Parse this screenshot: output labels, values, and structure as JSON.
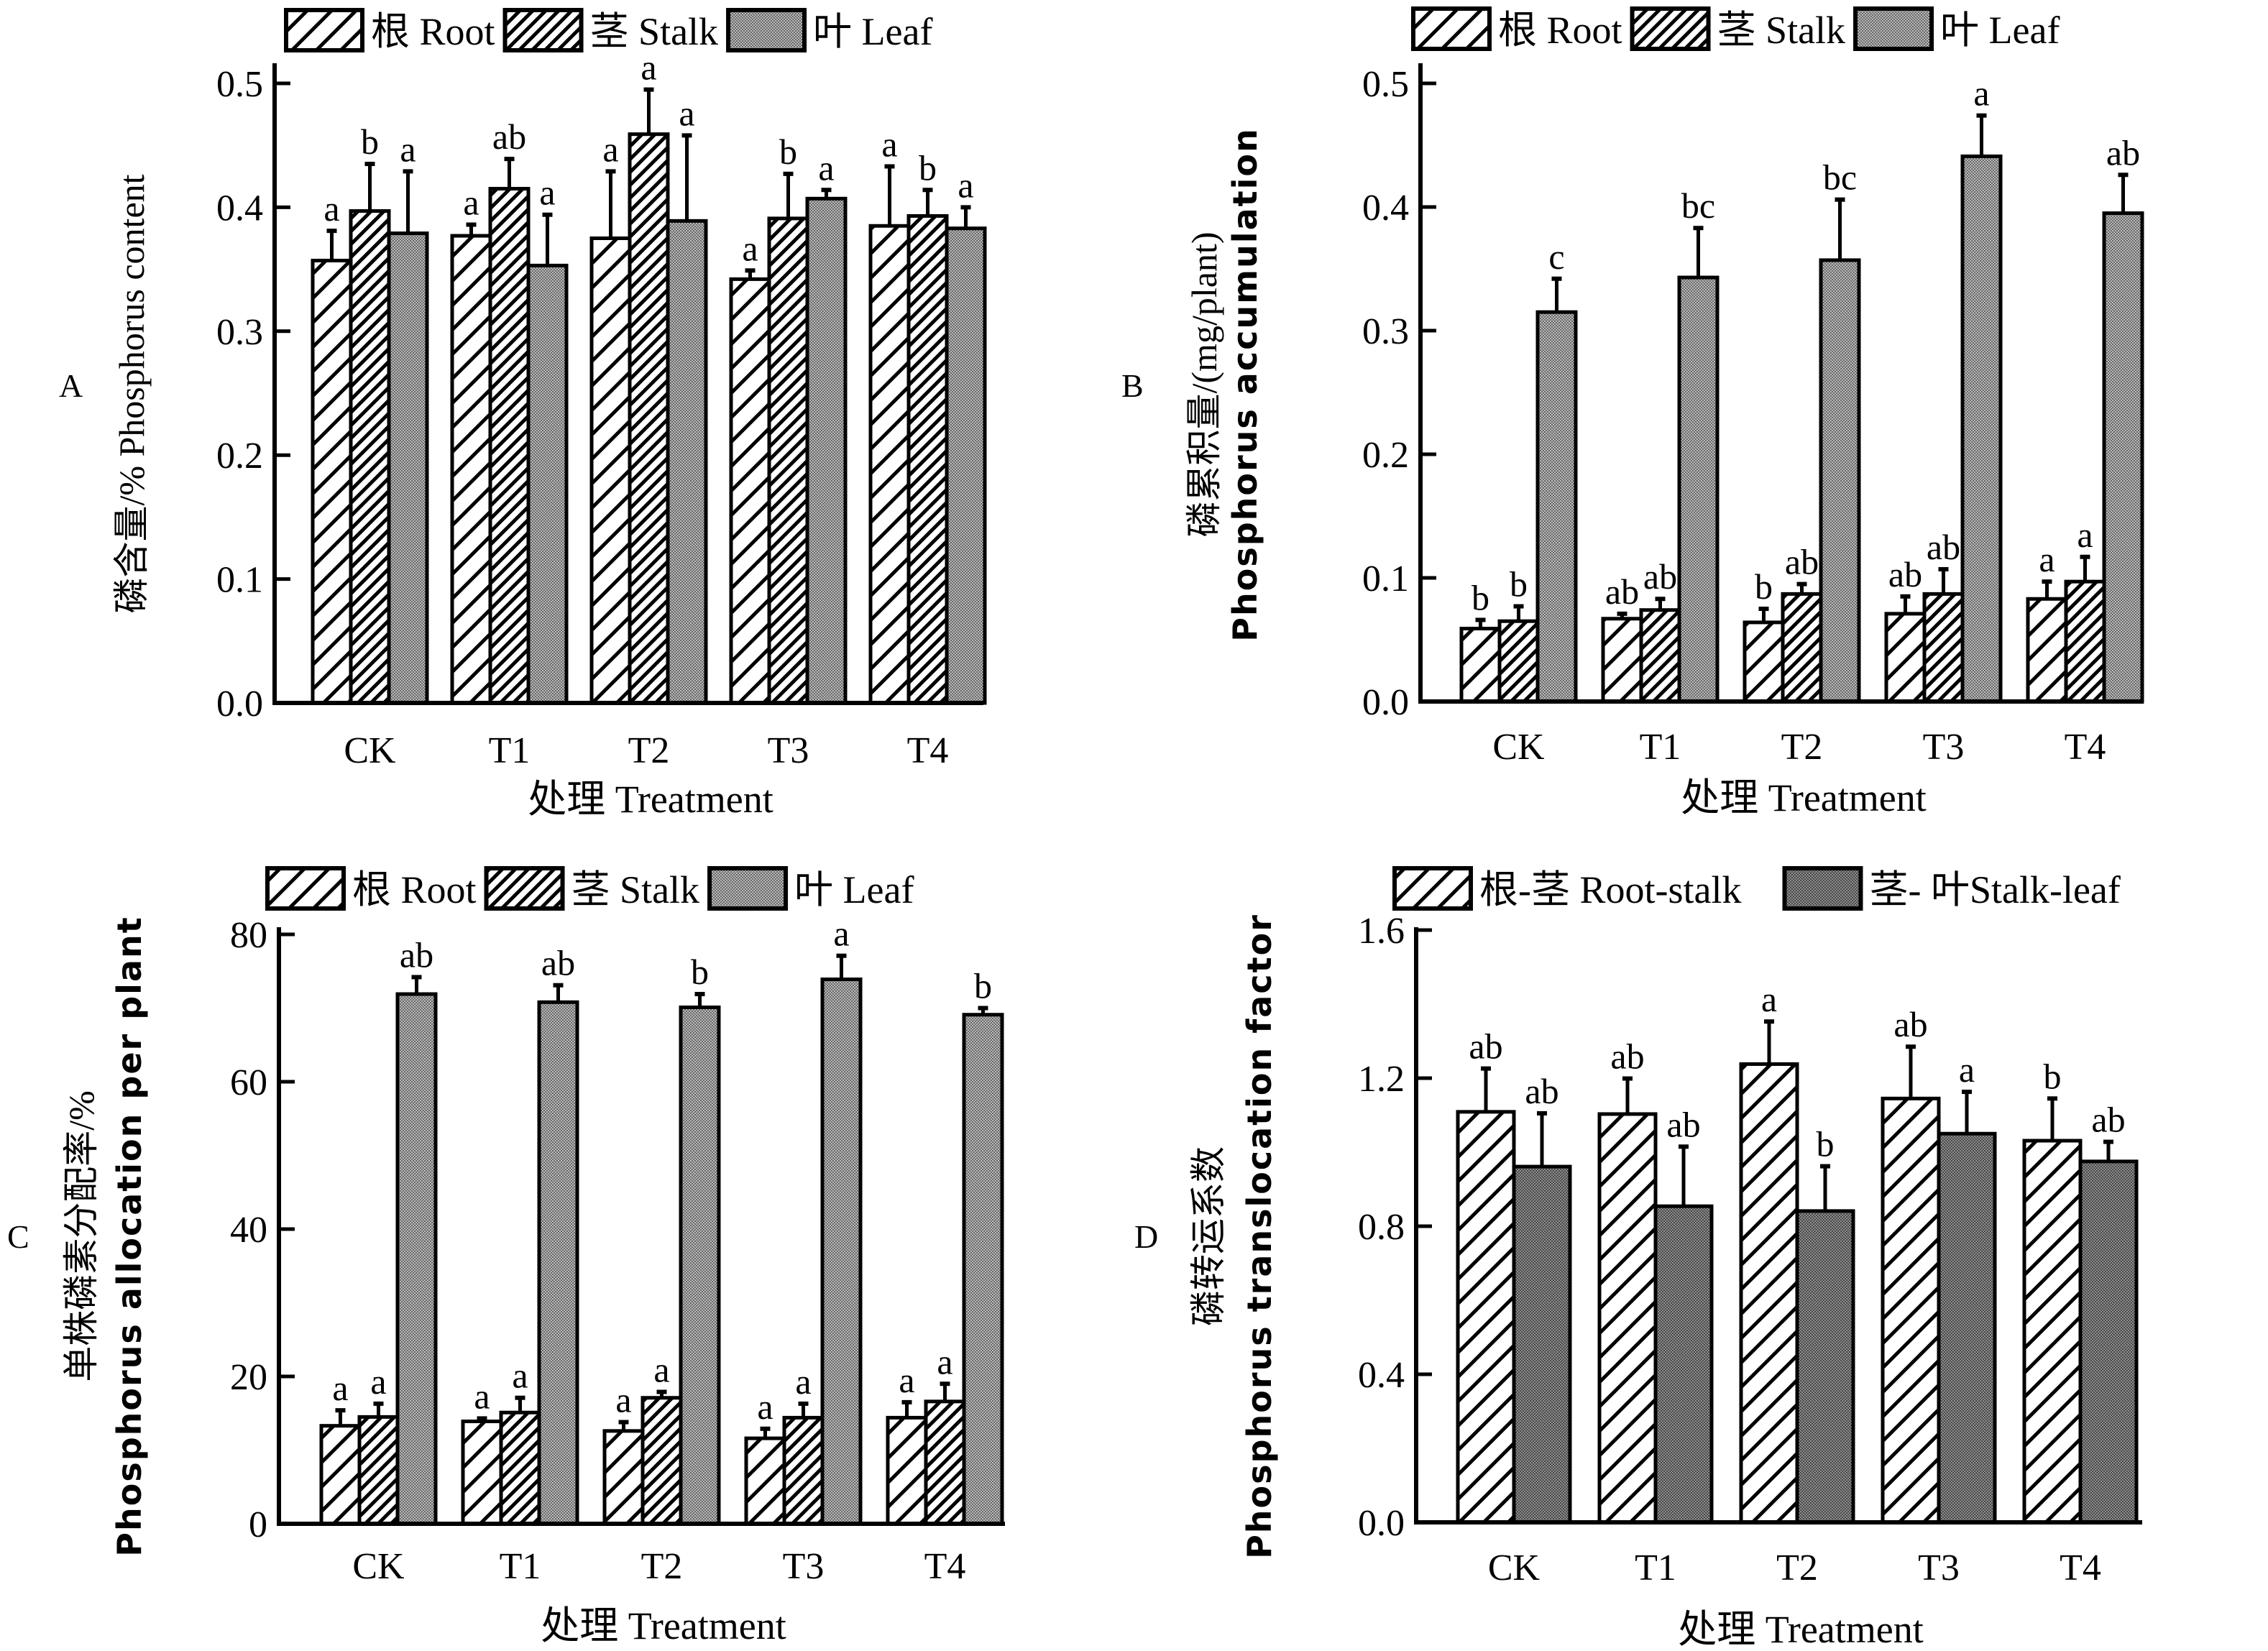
{
  "figure": {
    "colors": {
      "stroke": "#000000",
      "leaf_fill": "#9a9a9a",
      "leaf_fill_dark": "#808080",
      "background": "#ffffff"
    }
  },
  "chart_data": [
    {
      "id": "A",
      "panel_label": "A",
      "type": "bar",
      "title": "",
      "categories": [
        "CK",
        "T1",
        "T2",
        "T3",
        "T4"
      ],
      "xlabel": "处理 Treatment",
      "ylabel": "磷含量/% Phosphorus content",
      "ylabel_lines": [
        "磷含量/% Phosphorus content"
      ],
      "ylim": [
        0,
        0.5
      ],
      "yticks": [
        0.0,
        0.1,
        0.2,
        0.3,
        0.4,
        0.5
      ],
      "ytick_labels": [
        "0.0",
        "0.1",
        "0.2",
        "0.3",
        "0.4",
        "0.5"
      ],
      "grid": false,
      "legend_position": "top",
      "series": [
        {
          "name": "根 Root",
          "pattern": "hatch-wide",
          "values": [
            0.357,
            0.377,
            0.375,
            0.342,
            0.385
          ],
          "errors": [
            0.024,
            0.009,
            0.054,
            0.007,
            0.048
          ],
          "letters": [
            "a",
            "a",
            "a",
            "a",
            "a"
          ]
        },
        {
          "name": "茎 Stalk",
          "pattern": "hatch-dense",
          "values": [
            0.397,
            0.415,
            0.459,
            0.391,
            0.393
          ],
          "errors": [
            0.038,
            0.024,
            0.036,
            0.036,
            0.021
          ],
          "letters": [
            "b",
            "ab",
            "a",
            "b",
            "b"
          ]
        },
        {
          "name": "叶 Leaf",
          "pattern": "dots",
          "values": [
            0.379,
            0.353,
            0.389,
            0.407,
            0.383
          ],
          "errors": [
            0.05,
            0.041,
            0.069,
            0.007,
            0.017
          ],
          "letters": [
            "a",
            "a",
            "a",
            "a",
            "a"
          ]
        }
      ]
    },
    {
      "id": "B",
      "panel_label": "B",
      "type": "bar",
      "title": "",
      "categories": [
        "CK",
        "T1",
        "T2",
        "T3",
        "T4"
      ],
      "xlabel": "处理 Treatment",
      "ylabel": "磷累积量/(mg/plant) Phosphorus accumulation",
      "ylabel_lines": [
        "磷累积量/(mg/plant)",
        "Phosphorus accumulation"
      ],
      "ylim": [
        0,
        0.5
      ],
      "yticks": [
        0.0,
        0.1,
        0.2,
        0.3,
        0.4,
        0.5
      ],
      "ytick_labels": [
        "0.0",
        "0.1",
        "0.2",
        "0.3",
        "0.4",
        "0.5"
      ],
      "grid": false,
      "legend_position": "top",
      "series": [
        {
          "name": "根 Root",
          "pattern": "hatch-wide",
          "values": [
            0.059,
            0.067,
            0.064,
            0.071,
            0.083
          ],
          "errors": [
            0.007,
            0.004,
            0.011,
            0.014,
            0.014
          ],
          "letters": [
            "b",
            "ab",
            "b",
            "ab",
            "a"
          ]
        },
        {
          "name": "茎 Stalk",
          "pattern": "hatch-dense",
          "values": [
            0.065,
            0.074,
            0.087,
            0.087,
            0.097
          ],
          "errors": [
            0.012,
            0.009,
            0.008,
            0.02,
            0.02
          ],
          "letters": [
            "b",
            "ab",
            "ab",
            "ab",
            "a"
          ]
        },
        {
          "name": "叶 Leaf",
          "pattern": "dots",
          "values": [
            0.315,
            0.343,
            0.357,
            0.441,
            0.395
          ],
          "errors": [
            0.027,
            0.04,
            0.049,
            0.033,
            0.031
          ],
          "letters": [
            "c",
            "bc",
            "bc",
            "a",
            "ab"
          ]
        }
      ]
    },
    {
      "id": "C",
      "panel_label": "C",
      "type": "bar",
      "title": "",
      "categories": [
        "CK",
        "T1",
        "T2",
        "T3",
        "T4"
      ],
      "xlabel": "处理 Treatment",
      "ylabel": "单株磷素分配率/% Phosphorus allocation per plant",
      "ylabel_lines": [
        "单株磷素分配率/%",
        "Phosphorus allocation per plant"
      ],
      "ylim": [
        0,
        80
      ],
      "yticks": [
        0,
        20,
        40,
        60,
        80
      ],
      "ytick_labels": [
        "0",
        "20",
        "40",
        "60",
        "80"
      ],
      "grid": false,
      "legend_position": "top",
      "series": [
        {
          "name": "根 Root",
          "pattern": "hatch-wide",
          "values": [
            13.3,
            13.9,
            12.6,
            11.6,
            14.4
          ],
          "errors": [
            2.1,
            0.4,
            1.2,
            1.3,
            2.1
          ],
          "letters": [
            "a",
            "a",
            "a",
            "a",
            "a"
          ]
        },
        {
          "name": "茎 Stalk",
          "pattern": "hatch-dense",
          "values": [
            14.5,
            15.1,
            17.1,
            14.4,
            16.6
          ],
          "errors": [
            1.8,
            2.0,
            0.8,
            1.9,
            2.4
          ],
          "letters": [
            "a",
            "a",
            "a",
            "a",
            "a"
          ]
        },
        {
          "name": "叶 Leaf",
          "pattern": "dots",
          "values": [
            71.9,
            70.8,
            70.1,
            73.9,
            69.1
          ],
          "errors": [
            2.3,
            2.3,
            1.8,
            3.2,
            0.9
          ],
          "letters": [
            "ab",
            "ab",
            "b",
            "a",
            "b"
          ]
        }
      ]
    },
    {
      "id": "D",
      "panel_label": "D",
      "type": "bar",
      "title": "",
      "categories": [
        "CK",
        "T1",
        "T2",
        "T3",
        "T4"
      ],
      "xlabel": "处理 Treatment",
      "ylabel": "磷转运系数 Phosphorus translocation factor",
      "ylabel_lines": [
        "磷转运系数",
        "Phosphorus translocation factor"
      ],
      "ylim": [
        0,
        1.6
      ],
      "yticks": [
        0.0,
        0.4,
        0.8,
        1.2,
        1.6
      ],
      "ytick_labels": [
        "0.0",
        "0.4",
        "0.8",
        "1.2",
        "1.6"
      ],
      "grid": false,
      "legend_position": "top",
      "series": [
        {
          "name": "根-茎 Root-stalk",
          "pattern": "hatch-wide",
          "values": [
            1.109,
            1.103,
            1.238,
            1.145,
            1.031
          ],
          "errors": [
            0.117,
            0.096,
            0.115,
            0.14,
            0.114
          ],
          "letters": [
            "ab",
            "ab",
            "a",
            "ab",
            "b"
          ]
        },
        {
          "name": "茎- 叶Stalk-leaf",
          "pattern": "dots-dark",
          "values": [
            0.961,
            0.854,
            0.841,
            1.05,
            0.975
          ],
          "errors": [
            0.144,
            0.161,
            0.121,
            0.113,
            0.053
          ],
          "letters": [
            "ab",
            "ab",
            "b",
            "a",
            "ab"
          ]
        }
      ]
    }
  ]
}
